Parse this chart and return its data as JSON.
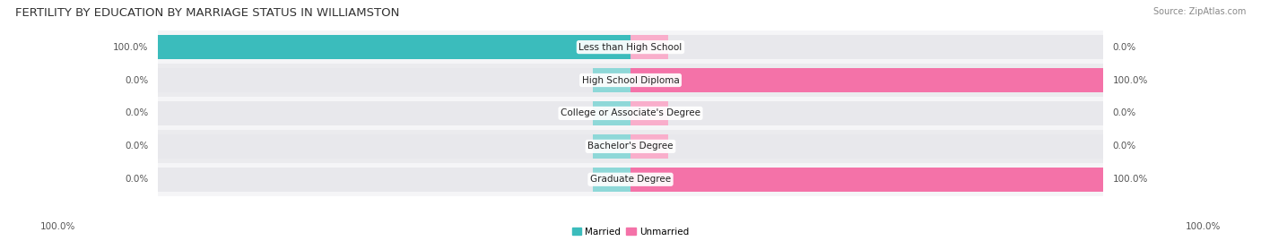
{
  "title": "FERTILITY BY EDUCATION BY MARRIAGE STATUS IN WILLIAMSTON",
  "source": "Source: ZipAtlas.com",
  "categories": [
    "Less than High School",
    "High School Diploma",
    "College or Associate's Degree",
    "Bachelor's Degree",
    "Graduate Degree"
  ],
  "married_values": [
    100.0,
    0.0,
    0.0,
    0.0,
    0.0
  ],
  "unmarried_values": [
    0.0,
    100.0,
    0.0,
    0.0,
    100.0
  ],
  "married_color": "#3BBCBC",
  "unmarried_color": "#F472A8",
  "married_color_light": "#8ED8D8",
  "unmarried_color_light": "#F9AECB",
  "bar_bg_color": "#E8E8EC",
  "row_bg_even": "#F5F5F7",
  "row_bg_odd": "#EBEBEE",
  "background_color": "#FFFFFF",
  "title_fontsize": 9.5,
  "label_fontsize": 7.5,
  "tick_fontsize": 7.5,
  "source_fontsize": 7,
  "bar_height": 0.72,
  "stub_size": 8.0,
  "text_color_dark": "#333333",
  "text_color_mid": "#555555",
  "text_color_light": "#888888"
}
